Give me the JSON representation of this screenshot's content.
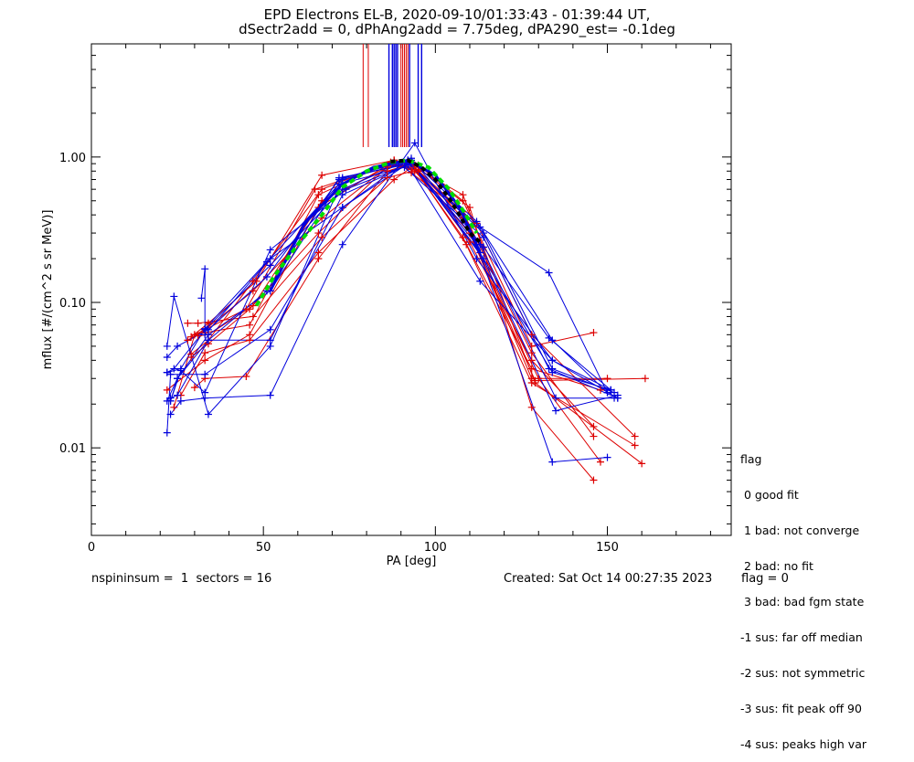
{
  "chart_data": {
    "type": "line",
    "title": "EPD Electrons EL-B, 2020-09-10/01:33:43 - 01:39:44 UT,",
    "subtitle": "dSectr2add = 0, dPhAng2add = 7.75deg, dPA290_est=  -0.1deg",
    "xlabel": "PA [deg]",
    "ylabel": "mflux [#/(cm^2 s sr MeV)]",
    "xlim": [
      0,
      186
    ],
    "ylim": [
      0.0025,
      6.0
    ],
    "yscale": "log",
    "xticks": [
      "0",
      "50",
      "100",
      "150"
    ],
    "yticks": [
      "0.01",
      "0.10",
      "1.00"
    ],
    "colors": {
      "red": "#dd0000",
      "blue": "#0000dd",
      "green": "#00dd00",
      "black": "#000000"
    },
    "red_series": [
      {
        "x": [
          22,
          33,
          46,
          66,
          86,
          94,
          108,
          128,
          146
        ],
        "y": [
          0.025,
          0.04,
          0.06,
          0.45,
          0.88,
          0.85,
          0.42,
          0.045,
          0.012
        ]
      },
      {
        "x": [
          24,
          30,
          45,
          65,
          87,
          94,
          110,
          130,
          148
        ],
        "y": [
          0.019,
          0.06,
          0.09,
          0.6,
          0.9,
          0.8,
          0.3,
          0.03,
          0.008
        ]
      },
      {
        "x": [
          29,
          34,
          48,
          67,
          88,
          93,
          112,
          128,
          158
        ],
        "y": [
          0.058,
          0.072,
          0.14,
          0.75,
          0.95,
          0.78,
          0.35,
          0.06,
          0.012
        ]
      },
      {
        "x": [
          28,
          31,
          47,
          67,
          86,
          95,
          108,
          129,
          160
        ],
        "y": [
          0.072,
          0.072,
          0.08,
          0.28,
          0.72,
          0.82,
          0.55,
          0.028,
          0.0078
        ]
      },
      {
        "x": [
          26,
          33,
          46,
          66,
          88,
          94,
          110,
          128,
          146
        ],
        "y": [
          0.023,
          0.045,
          0.055,
          0.22,
          0.7,
          0.88,
          0.45,
          0.019,
          0.006
        ]
      },
      {
        "x": [
          30,
          33,
          45,
          66,
          86,
          93,
          109,
          128,
          158
        ],
        "y": [
          0.026,
          0.03,
          0.031,
          0.2,
          0.8,
          0.9,
          0.25,
          0.028,
          0.0104
        ]
      },
      {
        "x": [
          29,
          34,
          47,
          67,
          87,
          95,
          108,
          128,
          146
        ],
        "y": [
          0.044,
          0.055,
          0.14,
          0.6,
          0.92,
          0.88,
          0.5,
          0.05,
          0.062
        ]
      },
      {
        "x": [
          30,
          33,
          46,
          66,
          88,
          94,
          110,
          128,
          150
        ],
        "y": [
          0.06,
          0.062,
          0.07,
          0.55,
          0.95,
          0.85,
          0.3,
          0.03,
          0.03
        ]
      },
      {
        "x": [
          31,
          34,
          47,
          67,
          86,
          93,
          108,
          129,
          161
        ],
        "y": [
          0.059,
          0.06,
          0.095,
          0.5,
          0.85,
          0.9,
          0.38,
          0.029,
          0.03
        ]
      },
      {
        "x": [
          29,
          34,
          46,
          66,
          87,
          94,
          108,
          128,
          148
        ],
        "y": [
          0.042,
          0.052,
          0.09,
          0.3,
          0.9,
          0.82,
          0.28,
          0.035,
          0.025
        ]
      },
      {
        "x": [
          28,
          33,
          47,
          67,
          88,
          95,
          110,
          128,
          146
        ],
        "y": [
          0.055,
          0.065,
          0.12,
          0.38,
          0.93,
          0.8,
          0.26,
          0.04,
          0.014
        ]
      }
    ],
    "blue_series": [
      {
        "x": [
          22,
          24,
          34,
          52,
          73,
          92,
          114,
          134,
          152
        ],
        "y": [
          0.05,
          0.11,
          0.017,
          0.05,
          0.7,
          0.92,
          0.3,
          0.035,
          0.024
        ]
      },
      {
        "x": [
          23,
          26,
          33,
          52,
          74,
          93,
          113,
          135,
          153
        ],
        "y": [
          0.021,
          0.034,
          0.024,
          0.23,
          0.6,
          0.9,
          0.22,
          0.018,
          0.023
        ]
      },
      {
        "x": [
          22,
          23,
          33,
          52,
          73,
          92,
          112,
          134,
          150
        ],
        "y": [
          0.0127,
          0.032,
          0.032,
          0.065,
          0.45,
          0.95,
          0.25,
          0.008,
          0.0086
        ]
      },
      {
        "x": [
          22,
          25,
          34,
          51,
          72,
          93,
          114,
          133,
          151
        ],
        "y": [
          0.042,
          0.05,
          0.065,
          0.15,
          0.7,
          0.98,
          0.24,
          0.057,
          0.025
        ]
      },
      {
        "x": [
          23,
          26,
          33,
          52,
          73,
          94,
          112,
          134,
          153
        ],
        "y": [
          0.017,
          0.021,
          0.022,
          0.023,
          0.25,
          1.25,
          0.2,
          0.04,
          0.022
        ]
      },
      {
        "x": [
          22,
          25,
          34,
          52,
          73,
          92,
          113,
          134,
          151
        ],
        "y": [
          0.021,
          0.03,
          0.055,
          0.055,
          0.55,
          0.88,
          0.14,
          0.04,
          0.025
        ]
      },
      {
        "x": [
          22,
          26,
          33,
          51,
          72,
          91,
          114,
          133,
          153
        ],
        "y": [
          0.033,
          0.035,
          0.066,
          0.19,
          0.65,
          0.85,
          0.28,
          0.035,
          0.022
        ]
      },
      {
        "x": [
          23,
          25,
          34,
          52,
          73,
          93,
          112,
          134,
          150
        ],
        "y": [
          0.021,
          0.03,
          0.06,
          0.12,
          0.72,
          0.95,
          0.36,
          0.055,
          0.024
        ]
      },
      {
        "x": [
          32,
          33,
          33,
          52,
          73,
          92,
          113,
          133,
          150
        ],
        "y": [
          0.107,
          0.17,
          0.06,
          0.2,
          0.45,
          0.9,
          0.33,
          0.16,
          0.024
        ]
      },
      {
        "x": [
          23,
          25,
          34,
          51,
          72,
          93,
          114,
          134,
          151
        ],
        "y": [
          0.022,
          0.023,
          0.055,
          0.12,
          0.72,
          0.9,
          0.2,
          0.033,
          0.025
        ]
      },
      {
        "x": [
          22,
          24,
          33,
          52,
          73,
          92,
          113,
          135,
          152
        ],
        "y": [
          0.033,
          0.035,
          0.065,
          0.18,
          0.6,
          0.95,
          0.25,
          0.022,
          0.022
        ]
      }
    ],
    "blue_vlines_x": [
      86.5,
      87.5,
      88,
      88.5,
      89,
      92.5,
      95,
      96
    ],
    "red_vlines_x": [
      79,
      80.5,
      88.5,
      90,
      90.5,
      91,
      91.5,
      92
    ],
    "green_fit": {
      "x": [
        48,
        53,
        60,
        67,
        73,
        80,
        87,
        92,
        98,
        104,
        108,
        112
      ],
      "y": [
        0.095,
        0.15,
        0.25,
        0.4,
        0.62,
        0.8,
        0.92,
        0.95,
        0.85,
        0.6,
        0.43,
        0.3
      ]
    },
    "black_fit": {
      "x": [
        87,
        92,
        96,
        100,
        104,
        107,
        110,
        113
      ],
      "y": [
        0.93,
        0.95,
        0.85,
        0.7,
        0.52,
        0.4,
        0.3,
        0.26
      ]
    },
    "blue_median": {
      "x": [
        52,
        62,
        73,
        82,
        92,
        100,
        107,
        113
      ],
      "y": [
        0.12,
        0.35,
        0.65,
        0.85,
        0.95,
        0.75,
        0.45,
        0.22
      ]
    }
  },
  "legend": {
    "title": "flag",
    "items": [
      " 0 good fit",
      " 1 bad: not converge",
      " 2 bad: no fit",
      " 3 bad: bad fgm state",
      "-1 sus: far off median",
      "-2 sus: not symmetric",
      "-3 sus: fit peak off 90",
      "-4 sus: peaks high var"
    ]
  },
  "footer": {
    "left": "nspininsum =  1  sectors = 16",
    "created": "Created: Sat Oct 14 00:27:35 2023",
    "flag": "flag = 0"
  }
}
